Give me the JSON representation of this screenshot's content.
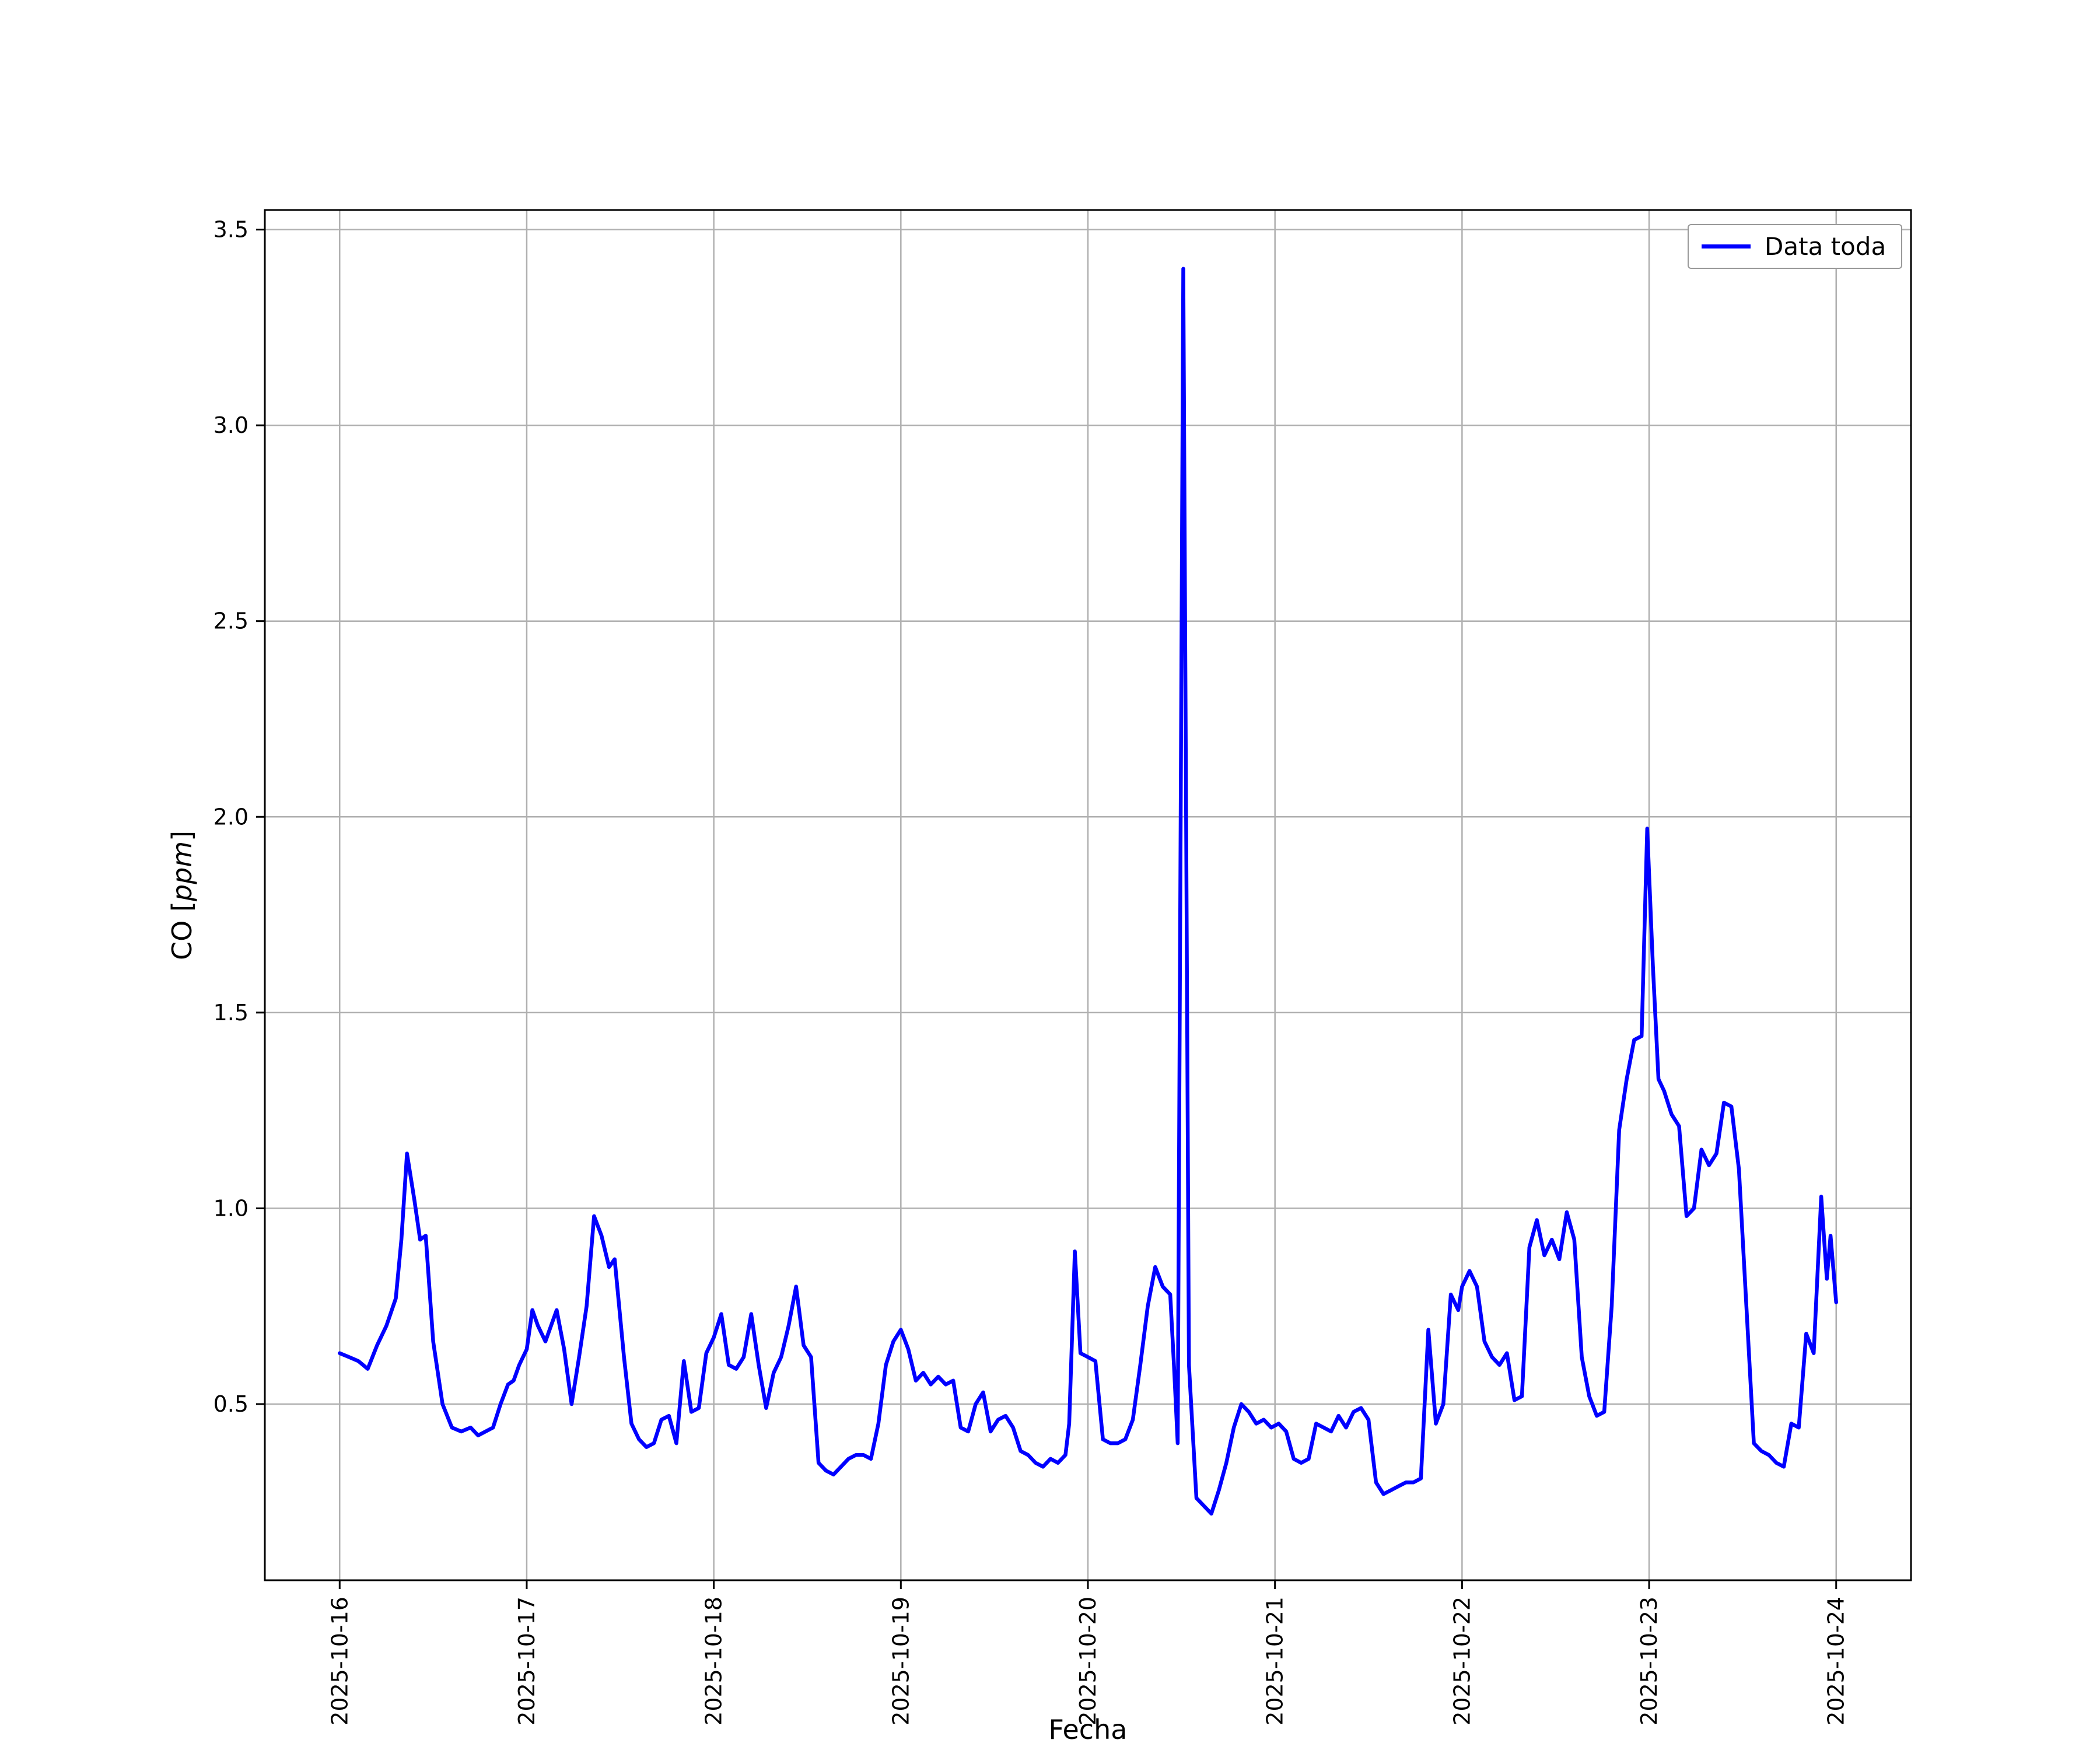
{
  "chart_data": {
    "type": "line",
    "title": "",
    "xlabel": "Fecha",
    "ylabel": "CO [ppm]",
    "ylabel_parts": {
      "prefix": "CO [",
      "italic": "ppm",
      "suffix": "]"
    },
    "legend": {
      "label": "Data toda",
      "position": "upper right"
    },
    "line_color": "#0000ff",
    "grid": true,
    "grid_color": "#b0b0b0",
    "x_unit": "days since 2025-10-16 00:00",
    "x_tick_positions": [
      0,
      1,
      2,
      3,
      4,
      5,
      6,
      7,
      8
    ],
    "x_tick_labels": [
      "2025-10-16",
      "2025-10-17",
      "2025-10-18",
      "2025-10-19",
      "2025-10-20",
      "2025-10-21",
      "2025-10-22",
      "2025-10-23",
      "2025-10-24"
    ],
    "x_tick_rotation": 90,
    "y_ticks": [
      0.5,
      1.0,
      1.5,
      2.0,
      2.5,
      3.0,
      3.5
    ],
    "xlim": [
      -0.4,
      8.4
    ],
    "ylim": [
      0.05,
      3.55
    ],
    "series": [
      {
        "name": "Data toda",
        "points": [
          [
            0.0,
            0.63
          ],
          [
            0.05,
            0.62
          ],
          [
            0.1,
            0.61
          ],
          [
            0.15,
            0.59
          ],
          [
            0.2,
            0.65
          ],
          [
            0.25,
            0.7
          ],
          [
            0.3,
            0.77
          ],
          [
            0.33,
            0.92
          ],
          [
            0.36,
            1.14
          ],
          [
            0.4,
            1.02
          ],
          [
            0.43,
            0.92
          ],
          [
            0.46,
            0.93
          ],
          [
            0.5,
            0.66
          ],
          [
            0.55,
            0.5
          ],
          [
            0.6,
            0.44
          ],
          [
            0.65,
            0.43
          ],
          [
            0.7,
            0.44
          ],
          [
            0.74,
            0.42
          ],
          [
            0.78,
            0.43
          ],
          [
            0.82,
            0.44
          ],
          [
            0.86,
            0.5
          ],
          [
            0.9,
            0.55
          ],
          [
            0.93,
            0.56
          ],
          [
            0.96,
            0.6
          ],
          [
            1.0,
            0.64
          ],
          [
            1.03,
            0.74
          ],
          [
            1.06,
            0.7
          ],
          [
            1.1,
            0.66
          ],
          [
            1.13,
            0.7
          ],
          [
            1.16,
            0.74
          ],
          [
            1.2,
            0.64
          ],
          [
            1.24,
            0.5
          ],
          [
            1.28,
            0.62
          ],
          [
            1.32,
            0.75
          ],
          [
            1.36,
            0.98
          ],
          [
            1.4,
            0.93
          ],
          [
            1.44,
            0.85
          ],
          [
            1.47,
            0.87
          ],
          [
            1.52,
            0.62
          ],
          [
            1.56,
            0.45
          ],
          [
            1.6,
            0.41
          ],
          [
            1.64,
            0.39
          ],
          [
            1.68,
            0.4
          ],
          [
            1.72,
            0.46
          ],
          [
            1.76,
            0.47
          ],
          [
            1.8,
            0.4
          ],
          [
            1.84,
            0.61
          ],
          [
            1.88,
            0.48
          ],
          [
            1.92,
            0.49
          ],
          [
            1.96,
            0.63
          ],
          [
            2.0,
            0.67
          ],
          [
            2.04,
            0.73
          ],
          [
            2.08,
            0.6
          ],
          [
            2.12,
            0.59
          ],
          [
            2.16,
            0.62
          ],
          [
            2.2,
            0.73
          ],
          [
            2.24,
            0.6
          ],
          [
            2.28,
            0.49
          ],
          [
            2.32,
            0.58
          ],
          [
            2.36,
            0.62
          ],
          [
            2.4,
            0.7
          ],
          [
            2.44,
            0.8
          ],
          [
            2.48,
            0.65
          ],
          [
            2.52,
            0.62
          ],
          [
            2.56,
            0.35
          ],
          [
            2.6,
            0.33
          ],
          [
            2.64,
            0.32
          ],
          [
            2.68,
            0.34
          ],
          [
            2.72,
            0.36
          ],
          [
            2.76,
            0.37
          ],
          [
            2.8,
            0.37
          ],
          [
            2.84,
            0.36
          ],
          [
            2.88,
            0.45
          ],
          [
            2.92,
            0.6
          ],
          [
            2.96,
            0.66
          ],
          [
            3.0,
            0.69
          ],
          [
            3.04,
            0.64
          ],
          [
            3.08,
            0.56
          ],
          [
            3.12,
            0.58
          ],
          [
            3.16,
            0.55
          ],
          [
            3.2,
            0.57
          ],
          [
            3.24,
            0.55
          ],
          [
            3.28,
            0.56
          ],
          [
            3.32,
            0.44
          ],
          [
            3.36,
            0.43
          ],
          [
            3.4,
            0.5
          ],
          [
            3.44,
            0.53
          ],
          [
            3.48,
            0.43
          ],
          [
            3.52,
            0.46
          ],
          [
            3.56,
            0.47
          ],
          [
            3.6,
            0.44
          ],
          [
            3.64,
            0.38
          ],
          [
            3.68,
            0.37
          ],
          [
            3.72,
            0.35
          ],
          [
            3.76,
            0.34
          ],
          [
            3.8,
            0.36
          ],
          [
            3.84,
            0.35
          ],
          [
            3.88,
            0.37
          ],
          [
            3.9,
            0.45
          ],
          [
            3.93,
            0.89
          ],
          [
            3.96,
            0.63
          ],
          [
            4.0,
            0.62
          ],
          [
            4.04,
            0.61
          ],
          [
            4.08,
            0.41
          ],
          [
            4.12,
            0.4
          ],
          [
            4.16,
            0.4
          ],
          [
            4.2,
            0.41
          ],
          [
            4.24,
            0.46
          ],
          [
            4.28,
            0.6
          ],
          [
            4.32,
            0.75
          ],
          [
            4.36,
            0.85
          ],
          [
            4.4,
            0.8
          ],
          [
            4.44,
            0.78
          ],
          [
            4.46,
            0.6
          ],
          [
            4.48,
            0.4
          ],
          [
            4.51,
            3.4
          ],
          [
            4.54,
            0.6
          ],
          [
            4.58,
            0.26
          ],
          [
            4.62,
            0.24
          ],
          [
            4.66,
            0.22
          ],
          [
            4.7,
            0.28
          ],
          [
            4.74,
            0.35
          ],
          [
            4.78,
            0.44
          ],
          [
            4.82,
            0.5
          ],
          [
            4.86,
            0.48
          ],
          [
            4.9,
            0.45
          ],
          [
            4.94,
            0.46
          ],
          [
            4.98,
            0.44
          ],
          [
            5.02,
            0.45
          ],
          [
            5.06,
            0.43
          ],
          [
            5.1,
            0.36
          ],
          [
            5.14,
            0.35
          ],
          [
            5.18,
            0.36
          ],
          [
            5.22,
            0.45
          ],
          [
            5.26,
            0.44
          ],
          [
            5.3,
            0.43
          ],
          [
            5.34,
            0.47
          ],
          [
            5.38,
            0.44
          ],
          [
            5.42,
            0.48
          ],
          [
            5.46,
            0.49
          ],
          [
            5.5,
            0.46
          ],
          [
            5.54,
            0.3
          ],
          [
            5.58,
            0.27
          ],
          [
            5.62,
            0.28
          ],
          [
            5.66,
            0.29
          ],
          [
            5.7,
            0.3
          ],
          [
            5.74,
            0.3
          ],
          [
            5.78,
            0.31
          ],
          [
            5.82,
            0.69
          ],
          [
            5.86,
            0.45
          ],
          [
            5.9,
            0.5
          ],
          [
            5.94,
            0.78
          ],
          [
            5.98,
            0.74
          ],
          [
            6.0,
            0.8
          ],
          [
            6.04,
            0.84
          ],
          [
            6.08,
            0.8
          ],
          [
            6.12,
            0.66
          ],
          [
            6.16,
            0.62
          ],
          [
            6.2,
            0.6
          ],
          [
            6.24,
            0.63
          ],
          [
            6.28,
            0.51
          ],
          [
            6.32,
            0.52
          ],
          [
            6.36,
            0.9
          ],
          [
            6.4,
            0.97
          ],
          [
            6.44,
            0.88
          ],
          [
            6.48,
            0.92
          ],
          [
            6.52,
            0.87
          ],
          [
            6.56,
            0.99
          ],
          [
            6.6,
            0.92
          ],
          [
            6.64,
            0.62
          ],
          [
            6.68,
            0.52
          ],
          [
            6.72,
            0.47
          ],
          [
            6.76,
            0.48
          ],
          [
            6.8,
            0.75
          ],
          [
            6.84,
            1.2
          ],
          [
            6.88,
            1.33
          ],
          [
            6.92,
            1.43
          ],
          [
            6.96,
            1.44
          ],
          [
            6.99,
            1.97
          ],
          [
            7.02,
            1.62
          ],
          [
            7.05,
            1.33
          ],
          [
            7.08,
            1.3
          ],
          [
            7.12,
            1.24
          ],
          [
            7.16,
            1.21
          ],
          [
            7.2,
            0.98
          ],
          [
            7.24,
            1.0
          ],
          [
            7.28,
            1.15
          ],
          [
            7.32,
            1.11
          ],
          [
            7.36,
            1.14
          ],
          [
            7.4,
            1.27
          ],
          [
            7.44,
            1.26
          ],
          [
            7.48,
            1.1
          ],
          [
            7.52,
            0.75
          ],
          [
            7.56,
            0.4
          ],
          [
            7.6,
            0.38
          ],
          [
            7.64,
            0.37
          ],
          [
            7.68,
            0.35
          ],
          [
            7.72,
            0.34
          ],
          [
            7.76,
            0.45
          ],
          [
            7.8,
            0.44
          ],
          [
            7.84,
            0.68
          ],
          [
            7.88,
            0.63
          ],
          [
            7.92,
            1.03
          ],
          [
            7.95,
            0.82
          ],
          [
            7.97,
            0.93
          ],
          [
            8.0,
            0.76
          ]
        ]
      }
    ]
  }
}
